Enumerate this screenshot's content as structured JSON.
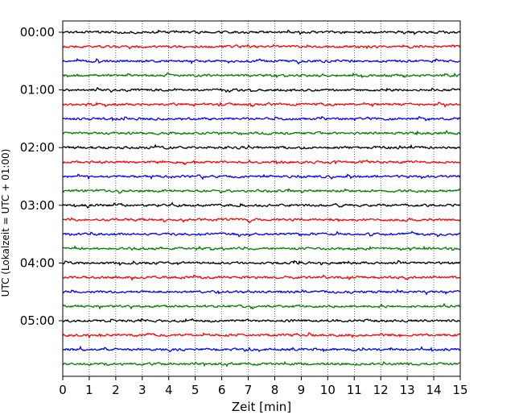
{
  "chart_data": {
    "type": "line",
    "title": "",
    "xlabel": "Zeit  [min]",
    "ylabel": "UTC (Lokalzeit = UTC + 01:00)",
    "xlim": [
      0,
      15
    ],
    "x_ticks": [
      "0",
      "1",
      "2",
      "3",
      "4",
      "5",
      "6",
      "7",
      "8",
      "9",
      "10",
      "11",
      "12",
      "13",
      "14",
      "15"
    ],
    "y_tick_labels": [
      "00:00",
      "01:00",
      "02:00",
      "03:00",
      "04:00",
      "05:00"
    ],
    "row_interval_min": 15,
    "row_count": 24,
    "row_colors": [
      "#000000",
      "#ff0000",
      "#0000ff",
      "#008000"
    ],
    "grid": "vertical-dotted",
    "series_start_times": [
      "00:00",
      "00:15",
      "00:30",
      "00:45",
      "01:00",
      "01:15",
      "01:30",
      "01:45",
      "02:00",
      "02:15",
      "02:30",
      "02:45",
      "03:00",
      "03:15",
      "03:30",
      "03:45",
      "04:00",
      "04:15",
      "04:30",
      "04:45",
      "05:00",
      "05:15",
      "05:30",
      "05:45"
    ]
  }
}
